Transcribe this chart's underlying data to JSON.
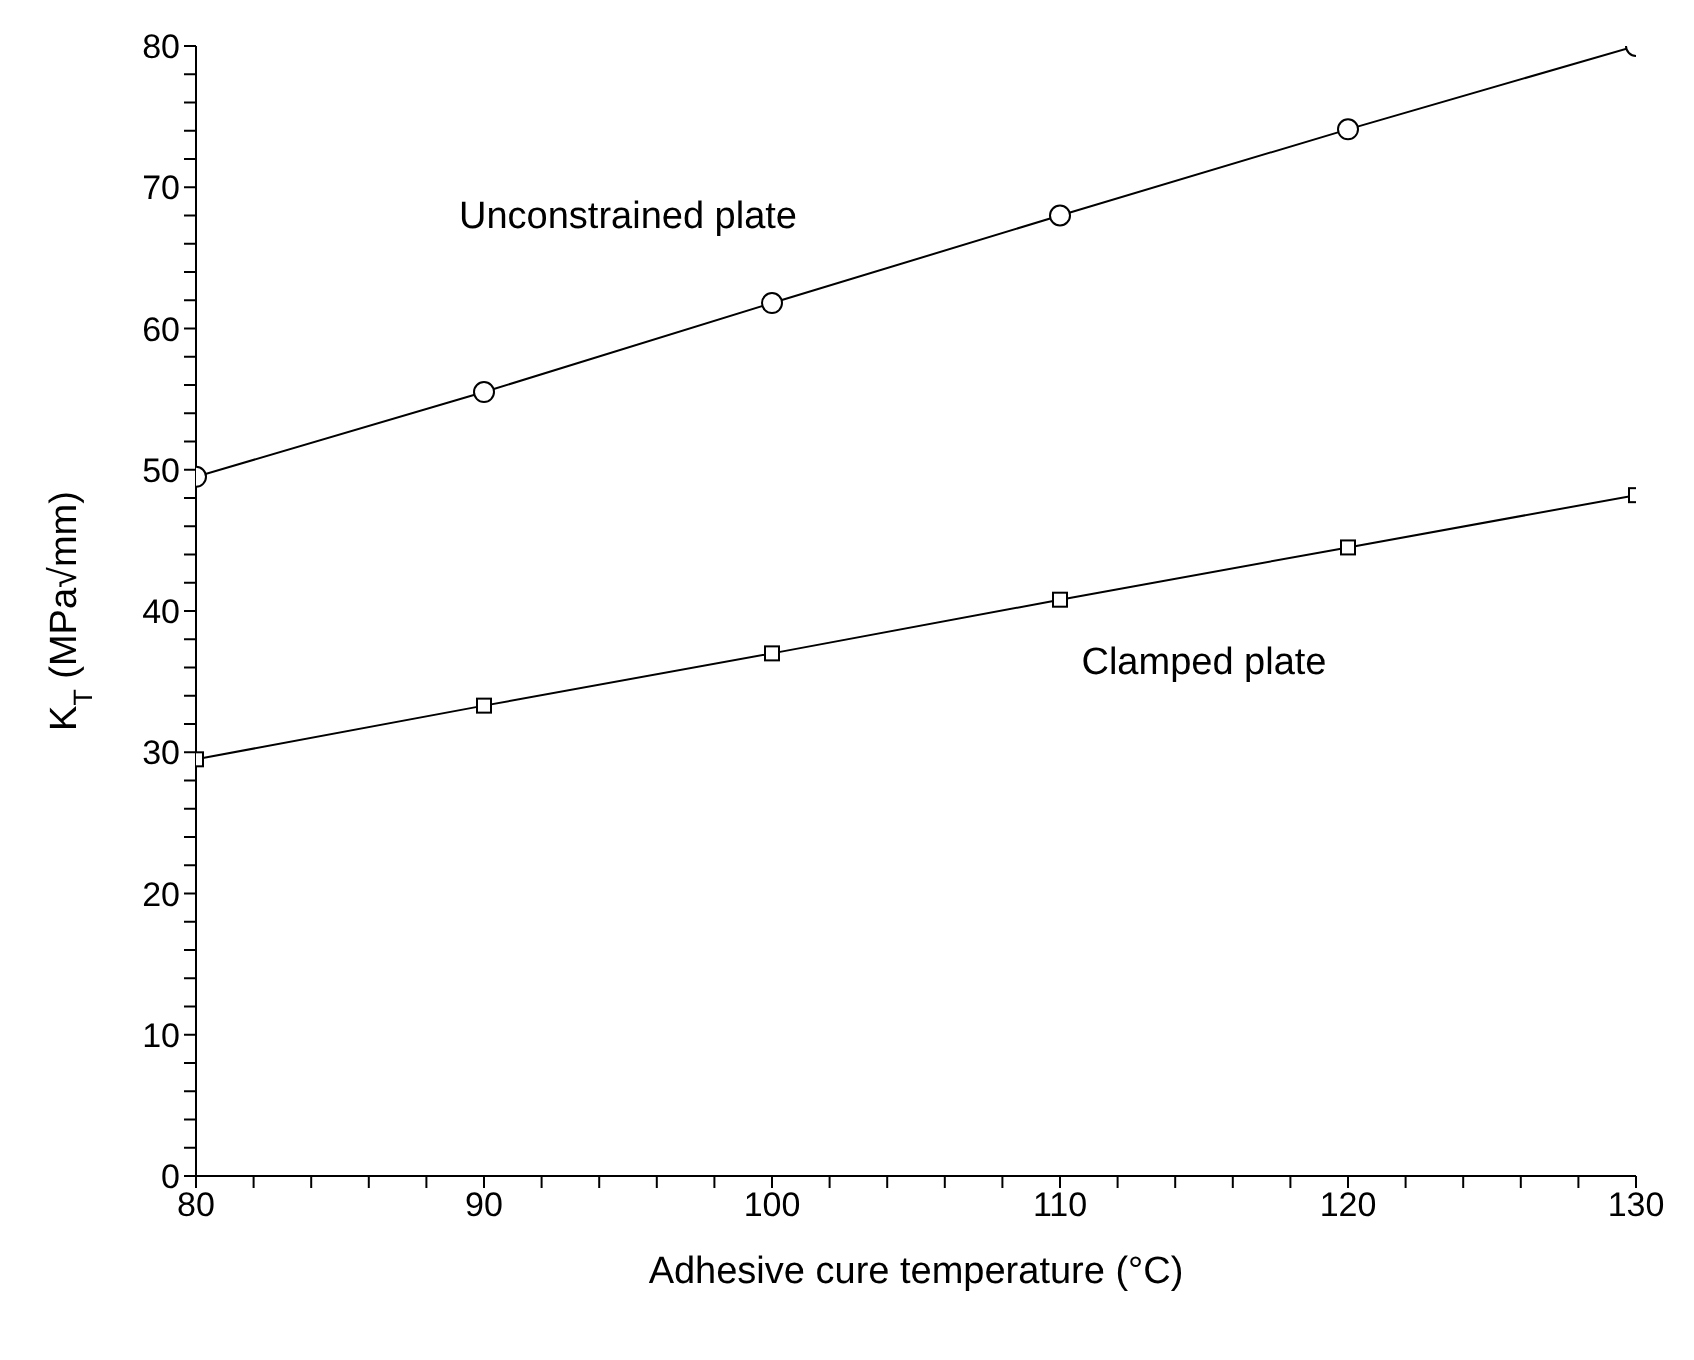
{
  "chart_data": {
    "type": "line",
    "xlabel": "Adhesive cure temperature (°C)",
    "ylabel": "K$_{T}$ (MPa√mm)",
    "legend": false,
    "grid": false,
    "x": [
      80,
      90,
      100,
      110,
      120,
      130
    ],
    "xlim": [
      80,
      130
    ],
    "xticks": [
      80,
      {
        "value": 82,
        "label": null
      },
      {
        "value": 84,
        "label": null
      },
      {
        "value": 86,
        "label": null
      },
      {
        "value": 88,
        "label": null
      },
      90,
      {
        "value": 92,
        "label": null
      },
      {
        "value": 94,
        "label": null
      },
      {
        "value": 96,
        "label": null
      },
      {
        "value": 98,
        "label": null
      },
      100,
      {
        "value": 102,
        "label": null
      },
      {
        "value": 104,
        "label": null
      },
      {
        "value": 106,
        "label": null
      },
      {
        "value": 108,
        "label": null
      },
      110,
      {
        "value": 112,
        "label": null
      },
      {
        "value": 114,
        "label": null
      },
      {
        "value": 116,
        "label": null
      },
      {
        "value": 118,
        "label": null
      },
      120,
      {
        "value": 122,
        "label": null
      },
      {
        "value": 124,
        "label": null
      },
      {
        "value": 126,
        "label": null
      },
      {
        "value": 128,
        "label": null
      },
      130
    ],
    "ylim": [
      0,
      80
    ],
    "yticks": [
      0,
      {
        "value": 2,
        "label": null
      },
      {
        "value": 4,
        "label": null
      },
      {
        "value": 6,
        "label": null
      },
      {
        "value": 8,
        "label": null
      },
      10,
      {
        "value": 12,
        "label": null
      },
      {
        "value": 14,
        "label": null
      },
      {
        "value": 16,
        "label": null
      },
      {
        "value": 18,
        "label": null
      },
      20,
      {
        "value": 22,
        "label": null
      },
      {
        "value": 24,
        "label": null
      },
      {
        "value": 26,
        "label": null
      },
      {
        "value": 28,
        "label": null
      },
      30,
      {
        "value": 32,
        "label": null
      },
      {
        "value": 34,
        "label": null
      },
      {
        "value": 36,
        "label": null
      },
      {
        "value": 38,
        "label": null
      },
      40,
      {
        "value": 42,
        "label": null
      },
      {
        "value": 44,
        "label": null
      },
      {
        "value": 46,
        "label": null
      },
      {
        "value": 48,
        "label": null
      },
      50,
      {
        "value": 52,
        "label": null
      },
      {
        "value": 54,
        "label": null
      },
      {
        "value": 56,
        "label": null
      },
      {
        "value": 58,
        "label": null
      },
      60,
      {
        "value": 62,
        "label": null
      },
      {
        "value": 64,
        "label": null
      },
      {
        "value": 66,
        "label": null
      },
      {
        "value": 68,
        "label": null
      },
      70,
      {
        "value": 72,
        "label": null
      },
      {
        "value": 74,
        "label": null
      },
      {
        "value": 76,
        "label": null
      },
      {
        "value": 78,
        "label": null
      },
      80
    ],
    "series": [
      {
        "name": "Unconstrained plate",
        "color": "#000000",
        "marker": "circle",
        "values": [
          49.5,
          55.5,
          61.8,
          68,
          74.1,
          80
        ]
      },
      {
        "name": "Clamped plate",
        "color": "#000000",
        "marker": "square",
        "values": [
          29.5,
          33.3,
          37,
          40.8,
          44.5,
          48.2
        ]
      }
    ]
  }
}
